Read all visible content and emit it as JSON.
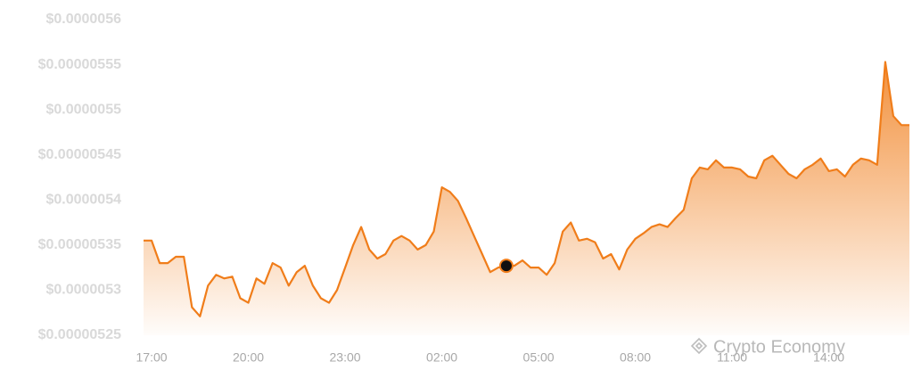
{
  "chart_data": {
    "type": "area",
    "color": "#f07d1a",
    "grid": false,
    "highlight_index": 45,
    "watermark": "Crypto Economy",
    "categories": [
      null,
      "17:00",
      null,
      null,
      null,
      null,
      null,
      null,
      null,
      null,
      null,
      null,
      null,
      "20:00",
      null,
      null,
      null,
      null,
      null,
      null,
      null,
      null,
      null,
      null,
      null,
      "23:00",
      null,
      null,
      null,
      null,
      null,
      null,
      null,
      null,
      null,
      null,
      null,
      "02:00",
      null,
      null,
      null,
      null,
      null,
      null,
      null,
      null,
      null,
      null,
      null,
      "05:00",
      null,
      null,
      null,
      null,
      null,
      null,
      null,
      null,
      null,
      null,
      null,
      "08:00",
      null,
      null,
      null,
      null,
      null,
      null,
      null,
      null,
      null,
      null,
      null,
      "11:00",
      null,
      null,
      null,
      null,
      null,
      null,
      null,
      null,
      null,
      null,
      null,
      "14:00",
      null,
      null,
      null,
      null,
      null,
      null,
      null,
      null,
      null,
      null
    ],
    "values": [
      5.355e-06,
      5.355e-06,
      5.33e-06,
      5.33e-06,
      5.337e-06,
      5.337e-06,
      5.281e-06,
      5.271e-06,
      5.305e-06,
      5.317e-06,
      5.313e-06,
      5.315e-06,
      5.291e-06,
      5.286e-06,
      5.313e-06,
      5.307e-06,
      5.33e-06,
      5.325e-06,
      5.305e-06,
      5.32e-06,
      5.327e-06,
      5.305e-06,
      5.291e-06,
      5.286e-06,
      5.3e-06,
      5.325e-06,
      5.35e-06,
      5.37e-06,
      5.345e-06,
      5.335e-06,
      5.34e-06,
      5.355e-06,
      5.36e-06,
      5.355e-06,
      5.345e-06,
      5.35e-06,
      5.365e-06,
      5.414e-06,
      5.409e-06,
      5.399e-06,
      5.38e-06,
      5.36e-06,
      5.34e-06,
      5.32e-06,
      5.325e-06,
      5.327e-06,
      5.327e-06,
      5.333e-06,
      5.325e-06,
      5.325e-06,
      5.317e-06,
      5.33e-06,
      5.365e-06,
      5.375e-06,
      5.355e-06,
      5.357e-06,
      5.353e-06,
      5.335e-06,
      5.34e-06,
      5.323e-06,
      5.345e-06,
      5.357e-06,
      5.363e-06,
      5.37e-06,
      5.373e-06,
      5.37e-06,
      5.38e-06,
      5.389e-06,
      5.424e-06,
      5.436e-06,
      5.434e-06,
      5.444e-06,
      5.436e-06,
      5.436e-06,
      5.434e-06,
      5.426e-06,
      5.424e-06,
      5.444e-06,
      5.449e-06,
      5.439e-06,
      5.429e-06,
      5.424e-06,
      5.434e-06,
      5.439e-06,
      5.446e-06,
      5.432e-06,
      5.434e-06,
      5.426e-06,
      5.439e-06,
      5.446e-06,
      5.444e-06,
      5.439e-06,
      5.553e-06,
      5.493e-06,
      5.483e-06,
      5.483e-06
    ],
    "ylim": [
      5.25e-06,
      5.6e-06
    ],
    "yticks": [
      {
        "value": 5.25e-06,
        "label": "$0.00000525"
      },
      {
        "value": 5.3e-06,
        "label": "$0.0000053"
      },
      {
        "value": 5.35e-06,
        "label": "$0.00000535"
      },
      {
        "value": 5.4e-06,
        "label": "$0.0000054"
      },
      {
        "value": 5.45e-06,
        "label": "$0.00000545"
      },
      {
        "value": 5.5e-06,
        "label": "$0.0000055"
      },
      {
        "value": 5.55e-06,
        "label": "$0.00000555"
      },
      {
        "value": 5.6e-06,
        "label": "$0.0000056"
      }
    ]
  }
}
